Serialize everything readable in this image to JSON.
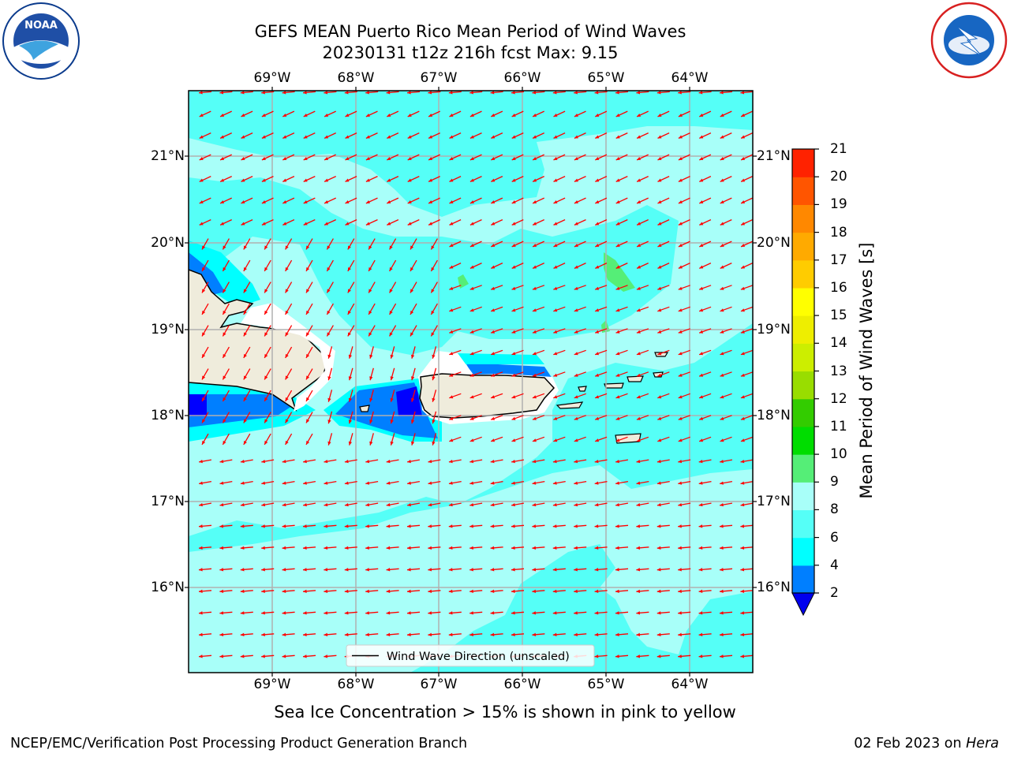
{
  "header": {
    "title_line1": "GEFS MEAN Puerto Rico Mean Period of Wind Waves",
    "title_line2": "20230131 t12z 216h fcst   Max: 9.15"
  },
  "logos": {
    "left_text": "NOAA",
    "left_ring_text": "NATIONAL OCEANIC AND ATMOSPHERIC ADMINISTRATION · U.S. DEPARTMENT OF COMMERCE",
    "right_ring_text": "NATIONAL WEATHER SERVICE"
  },
  "map": {
    "lon_labels": [
      "69°W",
      "68°W",
      "67°W",
      "66°W",
      "65°W",
      "64°W"
    ],
    "lat_labels": [
      "21°N",
      "20°N",
      "19°N",
      "18°N",
      "17°N",
      "16°N"
    ],
    "legend_label": "Wind Wave Direction (unscaled)",
    "ocean_colors": {
      "light": "#a8fff9",
      "mid": "#55fff7",
      "cyan": "#00ffff",
      "blue": "#007fff",
      "deep": "#0000ff"
    },
    "land_color": "#efecdc",
    "arrow_color": "#ff0000"
  },
  "colorbar": {
    "label": "Mean Period of Wind Waves [s]",
    "ticks": [
      "2",
      "4",
      "6",
      "8",
      "9",
      "10",
      "11",
      "12",
      "13",
      "14",
      "15",
      "16",
      "17",
      "18",
      "19",
      "20",
      "21"
    ],
    "colors": [
      "#007fff",
      "#00ffff",
      "#55fff7",
      "#a8fff9",
      "#55ee77",
      "#00dd00",
      "#33cc00",
      "#99dd00",
      "#ccee00",
      "#eeee00",
      "#ffff00",
      "#ffcc00",
      "#ffaa00",
      "#ff8800",
      "#ff5500",
      "#ff2200"
    ],
    "under_color": "#0000ee"
  },
  "caption": "Sea Ice Concentration > 15% is shown in pink to yellow",
  "footer": {
    "left": "NCEP/EMC/Verification Post Processing Product Generation Branch",
    "right_date": "02 Feb 2023 on ",
    "right_host": "Hera"
  }
}
